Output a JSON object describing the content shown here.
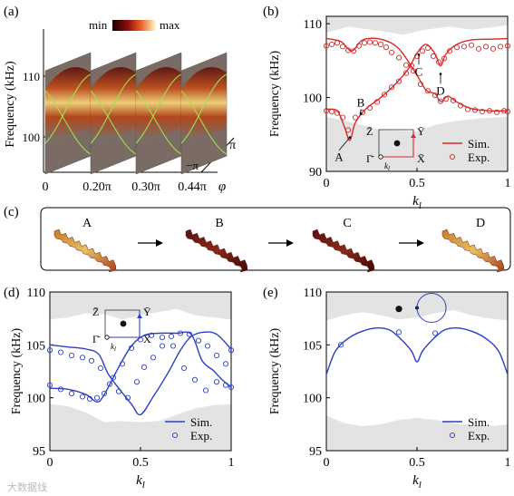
{
  "colors": {
    "sim_red": "#d42a2a",
    "exp_red": "#d42a2a",
    "sim_blue": "#2a3fc4",
    "exp_blue": "#2a3fc4",
    "gap_gray": "#e3e3e3"
  },
  "panel_a": {
    "tag": "(a)",
    "ylabel": "Frequency (kHz)",
    "yticks": [
      "110",
      "100"
    ],
    "xticks": [
      "0",
      "0.20π",
      "0.30π",
      "0.44π"
    ],
    "xvar": "φ",
    "ky_top": "π",
    "ky_bottom": "−π",
    "cbar_min": "min",
    "cbar_max": "max"
  },
  "panel_c": {
    "tag": "(c)",
    "labels": [
      "A",
      "B",
      "C",
      "D"
    ]
  },
  "watermark": "大数据线",
  "chart_data": [
    {
      "id": "b",
      "tag": "(b)",
      "type": "line",
      "xlabel": "kl",
      "ylabel": "Frequency (kHz)",
      "xlim": [
        0,
        1
      ],
      "ylim": [
        90,
        111
      ],
      "xticks": [
        "0",
        "0.5",
        "1"
      ],
      "yticks": [
        "90",
        "100",
        "110"
      ],
      "legend": [
        "Sim.",
        "Exp."
      ],
      "legend_position": "bottom-right",
      "annotations": [
        "A",
        "B",
        "C",
        "D"
      ],
      "inset": {
        "z": "Z̄",
        "y": "Ȳ",
        "g": "Γ̄",
        "x": "X̄",
        "k": "kl"
      },
      "gap_gray_top": [
        [
          0,
          108.8
        ],
        [
          0.12,
          109.6
        ],
        [
          0.3,
          109
        ],
        [
          0.42,
          108.5
        ],
        [
          0.55,
          109.2
        ],
        [
          0.68,
          109.6
        ],
        [
          0.8,
          109.2
        ],
        [
          0.88,
          109.4
        ],
        [
          1,
          109.8
        ]
      ],
      "gap_gray_bottom": [
        [
          0,
          97.4
        ],
        [
          0.15,
          96.6
        ],
        [
          0.3,
          95.6
        ],
        [
          0.5,
          95.4
        ],
        [
          0.6,
          96.3
        ],
        [
          0.7,
          96.8
        ],
        [
          0.85,
          97.2
        ],
        [
          1,
          97.4
        ]
      ],
      "series": [
        {
          "name": "Sim.",
          "kind": "line",
          "points": [
            [
              0,
              108
            ],
            [
              0.08,
              107.6
            ],
            [
              0.14,
              106.3
            ],
            [
              0.2,
              107.8
            ],
            [
              0.3,
              107.9
            ],
            [
              0.4,
              106.6
            ],
            [
              0.5,
              103
            ],
            [
              0.55,
              101
            ],
            [
              0.6,
              100.5
            ],
            [
              0.62,
              99.7
            ],
            [
              0.64,
              99.5
            ],
            [
              0.67,
              100.2
            ],
            [
              0.72,
              99.4
            ],
            [
              0.8,
              98.5
            ],
            [
              0.9,
              98.2
            ],
            [
              1,
              98.2
            ]
          ]
        },
        {
          "name": "Sim.",
          "kind": "line",
          "points": [
            [
              0,
              98.4
            ],
            [
              0.06,
              98.2
            ],
            [
              0.1,
              96
            ],
            [
              0.13,
              94.2
            ],
            [
              0.16,
              96.6
            ],
            [
              0.22,
              98.5
            ],
            [
              0.3,
              100
            ],
            [
              0.38,
              101.8
            ],
            [
              0.45,
              103.8
            ],
            [
              0.5,
              106
            ],
            [
              0.55,
              107.2
            ],
            [
              0.6,
              105.9
            ],
            [
              0.63,
              104.3
            ],
            [
              0.66,
              105.9
            ],
            [
              0.72,
              107.2
            ],
            [
              0.8,
              107.8
            ],
            [
              0.9,
              107.9
            ],
            [
              1,
              108
            ]
          ]
        },
        {
          "name": "Exp.",
          "kind": "markers",
          "points": [
            [
              0,
              107
            ],
            [
              0.03,
              107.2
            ],
            [
              0.06,
              107.4
            ],
            [
              0.09,
              106.9
            ],
            [
              0.12,
              106.4
            ],
            [
              0.15,
              106.3
            ],
            [
              0.18,
              107
            ],
            [
              0.21,
              107.4
            ],
            [
              0.24,
              107.5
            ],
            [
              0.27,
              107.4
            ],
            [
              0.3,
              107.2
            ],
            [
              0.33,
              106.8
            ],
            [
              0.36,
              106.1
            ],
            [
              0.4,
              105.4
            ],
            [
              0.44,
              104.4
            ],
            [
              0.48,
              103.6
            ],
            [
              0.52,
              101.8
            ],
            [
              0.56,
              100.9
            ],
            [
              0.6,
              100.3
            ],
            [
              0.63,
              99.5
            ],
            [
              0.66,
              99.8
            ],
            [
              0.7,
              99.6
            ],
            [
              0.74,
              98.9
            ],
            [
              0.78,
              98.4
            ],
            [
              0.82,
              98.3
            ],
            [
              0.86,
              98.1
            ],
            [
              0.9,
              98.2
            ],
            [
              0.94,
              98
            ],
            [
              0.98,
              98.2
            ],
            [
              1,
              98.1
            ]
          ]
        },
        {
          "name": "Exp.",
          "kind": "markers",
          "points": [
            [
              0,
              98.2
            ],
            [
              0.03,
              98.1
            ],
            [
              0.06,
              97.9
            ],
            [
              0.09,
              97.3
            ],
            [
              0.12,
              95.6
            ],
            [
              0.16,
              97.3
            ],
            [
              0.2,
              98
            ],
            [
              0.24,
              98.6
            ],
            [
              0.28,
              99.4
            ],
            [
              0.32,
              100.4
            ],
            [
              0.36,
              101.4
            ],
            [
              0.4,
              102.2
            ],
            [
              0.44,
              103.3
            ],
            [
              0.47,
              104.3
            ],
            [
              0.5,
              105.6
            ],
            [
              0.53,
              106.3
            ],
            [
              0.56,
              106.7
            ],
            [
              0.59,
              105.6
            ],
            [
              0.62,
              104.8
            ],
            [
              0.65,
              105.3
            ],
            [
              0.68,
              106.3
            ],
            [
              0.72,
              106.8
            ],
            [
              0.76,
              106.9
            ],
            [
              0.8,
              107.1
            ],
            [
              0.84,
              106.6
            ],
            [
              0.88,
              106.9
            ],
            [
              0.92,
              106.6
            ],
            [
              0.96,
              106.9
            ],
            [
              1,
              107
            ]
          ]
        }
      ]
    },
    {
      "id": "d",
      "tag": "(d)",
      "type": "line",
      "xlabel": "kl",
      "ylabel": "Frequency (kHz)",
      "xlim": [
        0,
        1
      ],
      "ylim": [
        95,
        110
      ],
      "xticks": [
        "0",
        "0.5",
        "1"
      ],
      "yticks": [
        "95",
        "100",
        "105",
        "110"
      ],
      "legend": [
        "Sim.",
        "Exp."
      ],
      "legend_position": "bottom-right",
      "inset": {
        "z": "Z̄",
        "y": "Ȳ",
        "g": "Γ̄",
        "x": "X̄",
        "k": "kl"
      },
      "gap_gray_top": [
        [
          0,
          107.4
        ],
        [
          0.1,
          107.6
        ],
        [
          0.2,
          108
        ],
        [
          0.3,
          107.9
        ],
        [
          0.4,
          107.4
        ],
        [
          0.5,
          107.8
        ],
        [
          0.6,
          108.1
        ],
        [
          0.7,
          108.4
        ],
        [
          0.8,
          107.8
        ],
        [
          0.9,
          107.6
        ],
        [
          1,
          107.4
        ]
      ],
      "gap_gray_bottom": [
        [
          0,
          99.4
        ],
        [
          0.1,
          99.2
        ],
        [
          0.2,
          98.6
        ],
        [
          0.3,
          97.7
        ],
        [
          0.4,
          97.8
        ],
        [
          0.5,
          97.7
        ],
        [
          0.6,
          97.8
        ],
        [
          0.7,
          98.4
        ],
        [
          0.8,
          99
        ],
        [
          0.9,
          99.3
        ],
        [
          1,
          99.4
        ]
      ],
      "series": [
        {
          "name": "Sim.",
          "kind": "line",
          "points": [
            [
              0,
              105
            ],
            [
              0.1,
              104.8
            ],
            [
              0.2,
              104.6
            ],
            [
              0.27,
              104.1
            ],
            [
              0.32,
              102.3
            ],
            [
              0.38,
              100.9
            ],
            [
              0.45,
              99.4
            ],
            [
              0.5,
              98.4
            ],
            [
              0.57,
              100.1
            ],
            [
              0.65,
              102.3
            ],
            [
              0.72,
              104.5
            ],
            [
              0.78,
              105.8
            ],
            [
              0.85,
              106.2
            ],
            [
              0.92,
              106
            ],
            [
              1,
              104.6
            ]
          ]
        },
        {
          "name": "Sim.",
          "kind": "line",
          "points": [
            [
              0,
              100.9
            ],
            [
              0.1,
              100.8
            ],
            [
              0.2,
              100.3
            ],
            [
              0.26,
              99.6
            ],
            [
              0.3,
              100.3
            ],
            [
              0.38,
              102.9
            ],
            [
              0.45,
              104.9
            ],
            [
              0.52,
              105.9
            ],
            [
              0.6,
              106.1
            ],
            [
              0.7,
              106.1
            ],
            [
              0.78,
              106
            ],
            [
              0.84,
              103.5
            ],
            [
              0.9,
              102.6
            ],
            [
              0.95,
              101.7
            ],
            [
              1,
              101
            ]
          ]
        },
        {
          "name": "Exp.",
          "kind": "markers",
          "points": [
            [
              0,
              104.5
            ],
            [
              0.06,
              104.3
            ],
            [
              0.12,
              104
            ],
            [
              0.18,
              103.8
            ],
            [
              0.23,
              103.5
            ],
            [
              0.28,
              102.8
            ],
            [
              0.33,
              101.3
            ],
            [
              0.38,
              100.6
            ],
            [
              0.43,
              100
            ],
            [
              0.48,
              101.5
            ],
            [
              0.52,
              102.9
            ],
            [
              0.57,
              103.8
            ],
            [
              0.62,
              104.9
            ],
            [
              0.67,
              105.8
            ],
            [
              0.72,
              106.1
            ],
            [
              0.77,
              106
            ],
            [
              0.82,
              105.4
            ],
            [
              0.87,
              104.9
            ],
            [
              0.92,
              104
            ],
            [
              0.97,
              103.2
            ],
            [
              1,
              104.5
            ]
          ]
        },
        {
          "name": "Exp.",
          "kind": "markers",
          "points": [
            [
              0,
              101.2
            ],
            [
              0.06,
              100.8
            ],
            [
              0.12,
              100.4
            ],
            [
              0.18,
              100.1
            ],
            [
              0.22,
              99.9
            ],
            [
              0.26,
              100
            ],
            [
              0.3,
              100.4
            ],
            [
              0.35,
              101.9
            ],
            [
              0.4,
              103.2
            ],
            [
              0.45,
              104.7
            ],
            [
              0.5,
              105.5
            ],
            [
              0.56,
              105.9
            ],
            [
              0.62,
              105.7
            ],
            [
              0.68,
              104.9
            ],
            [
              0.74,
              102.8
            ],
            [
              0.8,
              101.7
            ],
            [
              0.86,
              100.7
            ],
            [
              0.92,
              101.5
            ],
            [
              0.97,
              101.2
            ],
            [
              1,
              101
            ]
          ]
        }
      ]
    },
    {
      "id": "e",
      "tag": "(e)",
      "type": "line",
      "xlabel": "kl",
      "ylabel": "Frequency (kHz)",
      "xlim": [
        0,
        1
      ],
      "ylim": [
        95,
        110
      ],
      "xticks": [
        "0",
        "0.5",
        "1"
      ],
      "yticks": [
        "95",
        "100",
        "105",
        "110"
      ],
      "legend": [
        "Sim.",
        "Exp."
      ],
      "legend_position": "bottom-right",
      "gap_gray_top": [
        [
          0,
          107.3
        ],
        [
          0.1,
          107.8
        ],
        [
          0.2,
          108.1
        ],
        [
          0.3,
          107.8
        ],
        [
          0.4,
          107.4
        ],
        [
          0.5,
          107.6
        ],
        [
          0.6,
          108
        ],
        [
          0.7,
          108.3
        ],
        [
          0.8,
          107.8
        ],
        [
          0.9,
          107.5
        ],
        [
          1,
          107.3
        ]
      ],
      "gap_gray_bottom": [
        [
          0,
          98.3
        ],
        [
          0.1,
          97.6
        ],
        [
          0.2,
          97.3
        ],
        [
          0.3,
          97.5
        ],
        [
          0.4,
          97.9
        ],
        [
          0.5,
          98.1
        ],
        [
          0.6,
          97.9
        ],
        [
          0.7,
          97.6
        ],
        [
          0.8,
          97.4
        ],
        [
          0.9,
          97.3
        ],
        [
          1,
          97.5
        ]
      ],
      "series": [
        {
          "name": "Sim.",
          "kind": "line",
          "points": [
            [
              0,
              102.2
            ],
            [
              0.05,
              104.4
            ],
            [
              0.12,
              105.6
            ],
            [
              0.2,
              106.3
            ],
            [
              0.28,
              106.6
            ],
            [
              0.35,
              106.4
            ],
            [
              0.42,
              105.4
            ],
            [
              0.47,
              104.4
            ],
            [
              0.5,
              103.4
            ],
            [
              0.53,
              104.4
            ],
            [
              0.58,
              105.4
            ],
            [
              0.65,
              106.4
            ],
            [
              0.72,
              106.6
            ],
            [
              0.8,
              106.3
            ],
            [
              0.88,
              105.6
            ],
            [
              0.95,
              104.4
            ],
            [
              1,
              102.2
            ]
          ]
        },
        {
          "name": "Exp.",
          "kind": "markers",
          "points": [
            [
              0.08,
              105
            ],
            [
              0.4,
              106.2
            ],
            [
              0.6,
              106.1
            ]
          ]
        }
      ]
    }
  ]
}
